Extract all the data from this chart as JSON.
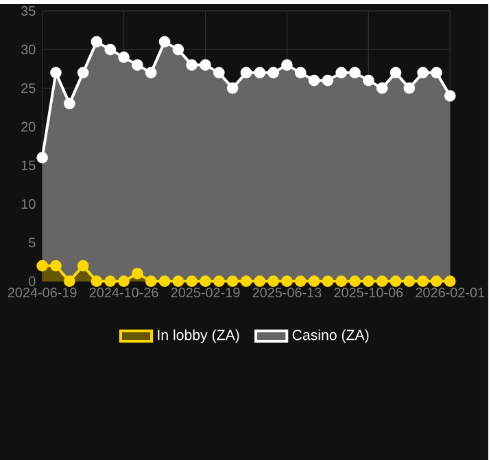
{
  "chart_data": {
    "type": "area",
    "categories": [
      "2024-06-19",
      null,
      null,
      null,
      null,
      null,
      "2024-10-26",
      null,
      null,
      null,
      null,
      null,
      "2025-02-19",
      null,
      null,
      null,
      null,
      null,
      "2025-06-13",
      null,
      null,
      null,
      null,
      null,
      "2025-10-06",
      null,
      null,
      null,
      null,
      null,
      "2026-02-01"
    ],
    "series": [
      {
        "name": "In lobby (ZA)",
        "color": "#ffd700",
        "values": [
          2,
          2,
          0,
          2,
          0,
          0,
          0,
          1,
          0,
          0,
          0,
          0,
          0,
          0,
          0,
          0,
          0,
          0,
          0,
          0,
          0,
          0,
          0,
          0,
          0,
          0,
          0,
          0,
          0,
          0,
          0
        ]
      },
      {
        "name": "Casino (ZA)",
        "color": "#ffffff",
        "values": [
          16,
          27,
          23,
          27,
          31,
          30,
          29,
          28,
          27,
          31,
          30,
          28,
          28,
          27,
          25,
          27,
          27,
          27,
          28,
          27,
          26,
          26,
          27,
          27,
          26,
          25,
          27,
          25,
          27,
          27,
          24
        ]
      }
    ],
    "ylim": [
      0,
      35
    ],
    "yticks": [
      0,
      5,
      10,
      15,
      20,
      25,
      30,
      35
    ],
    "grid": true,
    "legend": "bottom",
    "marker": "circle"
  }
}
